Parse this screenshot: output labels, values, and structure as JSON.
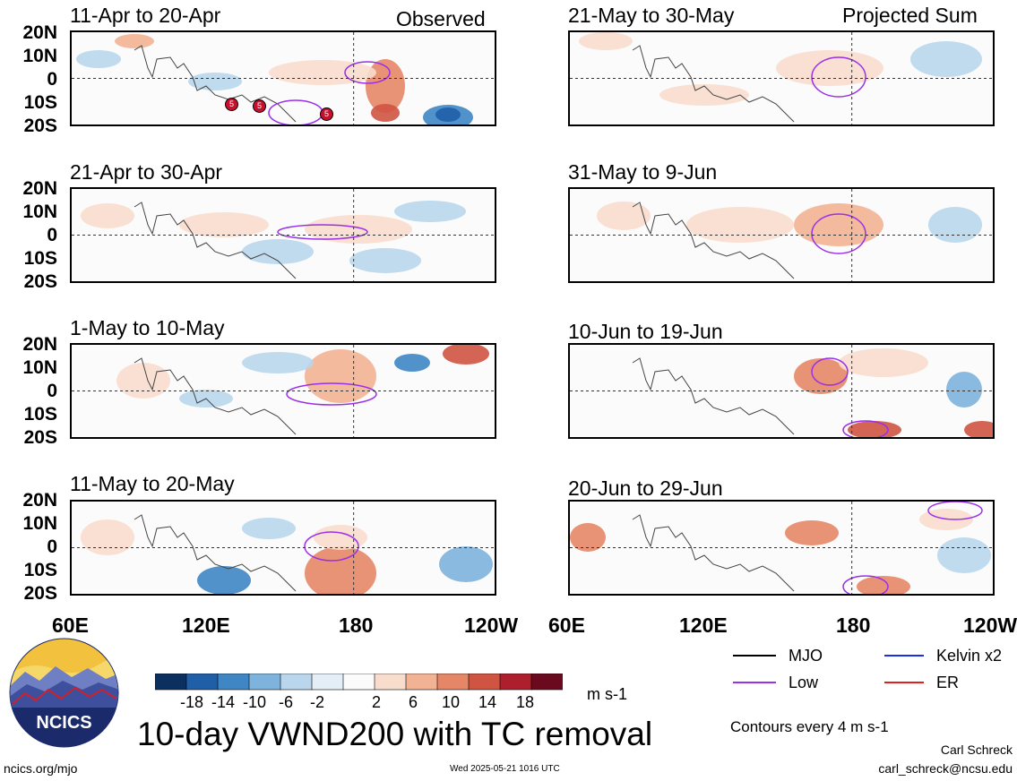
{
  "header": {
    "observed": "Observed",
    "projected": "Projected Sum"
  },
  "lat_labels": [
    "20N",
    "10N",
    "0",
    "10S",
    "20S"
  ],
  "lon_labels": [
    "60E",
    "120E",
    "180",
    "120W"
  ],
  "panels": [
    {
      "period": "11-Apr to 20-Apr"
    },
    {
      "period": "21-Apr to 30-Apr"
    },
    {
      "period": "1-May to 10-May"
    },
    {
      "period": "11-May to 20-May"
    },
    {
      "period": "21-May to 30-May"
    },
    {
      "period": "31-May to 9-Jun"
    },
    {
      "period": "10-Jun to 19-Jun"
    },
    {
      "period": "20-Jun to 29-Jun"
    }
  ],
  "tc_markers": [
    "5",
    "5",
    "5"
  ],
  "colorbar": {
    "ticks": [
      "-18",
      "-14",
      "-10",
      "-6",
      "-2",
      "2",
      "6",
      "10",
      "14",
      "18"
    ],
    "colors": [
      "#0b2f5e",
      "#1f5fa8",
      "#3f86c4",
      "#7db3dd",
      "#b9d6ec",
      "#e4eef6",
      "#fbfbfb",
      "#f8ddcd",
      "#f2b294",
      "#e58766",
      "#cf5442",
      "#ad1f2c",
      "#6b0a1e"
    ],
    "units": "m s-1"
  },
  "legend": {
    "items": [
      {
        "label": "MJO",
        "color": "#000000"
      },
      {
        "label": "Kelvin x2",
        "color": "#1a2ee6"
      },
      {
        "label": "Low",
        "color": "#9b30e8"
      },
      {
        "label": "ER",
        "color": "#e0201c"
      }
    ],
    "contour_note": "Contours every 4 m s-1"
  },
  "title": "10-day VWND200 with TC removal",
  "logo_text": "NCICS",
  "footer": {
    "url": "ncics.org/mjo",
    "timestamp": "Wed 2025-05-21 1016 UTC",
    "author": "Carl Schreck",
    "email": "carl_schreck@ncsu.edu"
  }
}
